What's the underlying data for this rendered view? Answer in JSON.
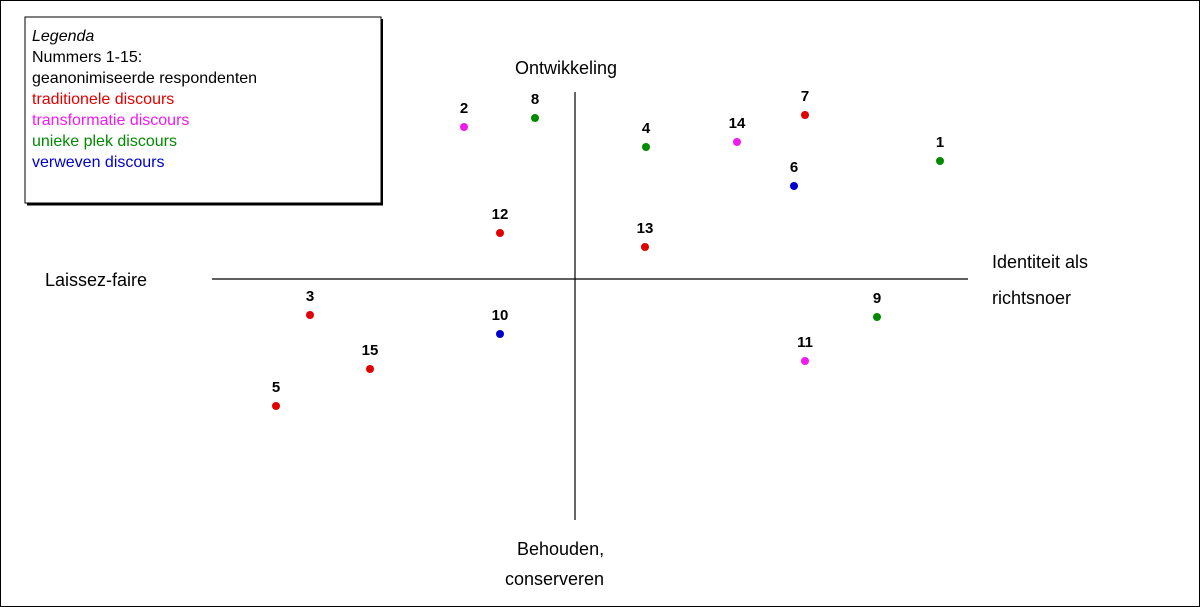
{
  "legend": {
    "title": "Legenda",
    "lines": [
      "Nummers 1-15:",
      "geanonimiseerde respondenten"
    ],
    "groups": [
      {
        "name": "traditionele discours",
        "color": "#e00000"
      },
      {
        "name": "transformatie discours",
        "color": "#f01af0"
      },
      {
        "name": "unieke plek discours",
        "color": "#008a00"
      },
      {
        "name": "verweven discours",
        "color": "#0000cc"
      }
    ]
  },
  "axes": {
    "top": "Ontwikkeling",
    "bottom": [
      "Behouden,",
      "conserveren"
    ],
    "left": "Laissez-faire",
    "right": [
      "Identiteit als",
      "richtsnoer"
    ]
  },
  "points": [
    {
      "label": "1",
      "color": "#008a00"
    },
    {
      "label": "2",
      "color": "#f01af0"
    },
    {
      "label": "3",
      "color": "#e00000"
    },
    {
      "label": "4",
      "color": "#008a00"
    },
    {
      "label": "5",
      "color": "#e00000"
    },
    {
      "label": "6",
      "color": "#0000cc"
    },
    {
      "label": "7",
      "color": "#e00000"
    },
    {
      "label": "8",
      "color": "#008a00"
    },
    {
      "label": "9",
      "color": "#008a00"
    },
    {
      "label": "10",
      "color": "#0000cc"
    },
    {
      "label": "11",
      "color": "#f01af0"
    },
    {
      "label": "12",
      "color": "#e00000"
    },
    {
      "label": "13",
      "color": "#e00000"
    },
    {
      "label": "14",
      "color": "#f01af0"
    },
    {
      "label": "15",
      "color": "#e00000"
    }
  ]
}
